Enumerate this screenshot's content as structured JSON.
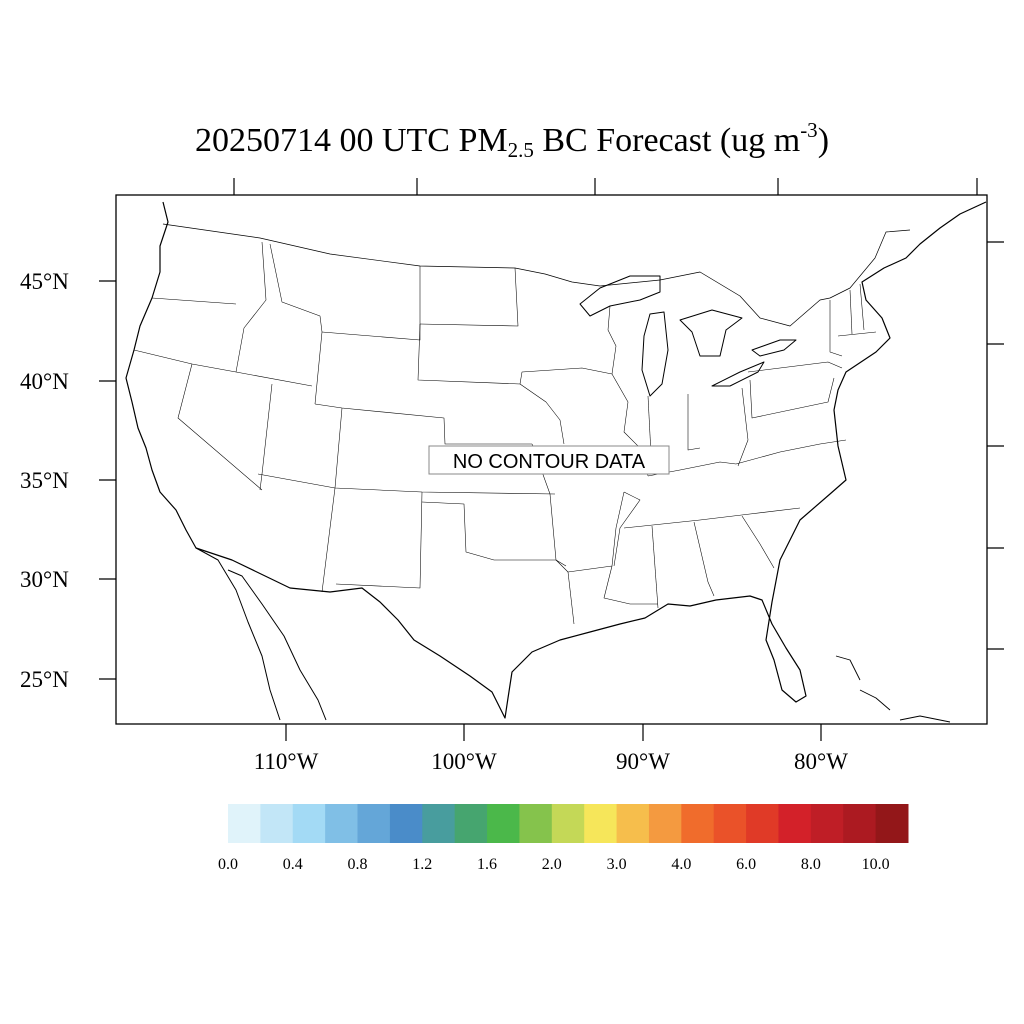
{
  "title": {
    "prefix": "20250714 00 UTC PM",
    "sub": "2.5",
    "middle": " BC Forecast (ug m",
    "sup": "-3",
    "suffix": ")"
  },
  "map": {
    "region": "Continental United States",
    "lat_labels": [
      "45°N",
      "40°N",
      "35°N",
      "30°N",
      "25°N"
    ],
    "lon_labels": [
      "110°W",
      "100°W",
      "90°W",
      "80°W"
    ],
    "message": "NO CONTOUR DATA"
  },
  "colorbar": {
    "colors": [
      "#e0f3fa",
      "#c2e6f7",
      "#a3daf5",
      "#80bfe6",
      "#64a6d8",
      "#4a8cc9",
      "#489d9e",
      "#46a56f",
      "#4bb84a",
      "#85c34c",
      "#c4d857",
      "#f6e65a",
      "#f6be4c",
      "#f49a40",
      "#f06c2c",
      "#ea5229",
      "#e03a27",
      "#d32129",
      "#bf1e26",
      "#ac1a21",
      "#931719"
    ],
    "labels": [
      "0.0",
      "0.4",
      "0.8",
      "1.2",
      "1.6",
      "2.0",
      "3.0",
      "4.0",
      "6.0",
      "8.0",
      "10.0"
    ]
  }
}
